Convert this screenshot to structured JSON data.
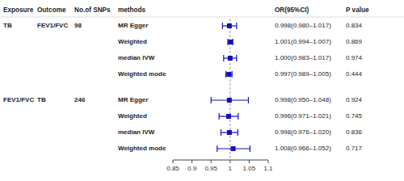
{
  "chart_data": {
    "type": "forest",
    "columns": [
      "Exposure",
      "Outcome",
      "No.of SNPs",
      "methods",
      "OR(95%CI)",
      "P value"
    ],
    "rows": [
      {
        "exposure": "TB",
        "outcome": "FEV1/FVC",
        "snps": 98,
        "method": "MR Egger",
        "value": 0.998,
        "ci_low": 0.98,
        "ci_high": 1.017,
        "value_label": "0.998(0.980–1.017)",
        "pval": 0.834
      },
      {
        "exposure": null,
        "outcome": null,
        "snps": null,
        "method": "Weighted",
        "value": 1.001,
        "ci_low": 0.994,
        "ci_high": 1.007,
        "value_label": "1.001(0.994–1.007)",
        "pval": 0.869
      },
      {
        "exposure": null,
        "outcome": null,
        "snps": null,
        "method": "median IVW",
        "value": 1.0,
        "ci_low": 0.983,
        "ci_high": 1.017,
        "value_label": "1.000(0.983–1.017)",
        "pval": 0.974
      },
      {
        "exposure": null,
        "outcome": null,
        "snps": null,
        "method": "Weighted mode",
        "value": 0.997,
        "ci_low": 0.989,
        "ci_high": 1.005,
        "value_label": "0.997(0.989–1.005)",
        "pval": 0.444
      },
      {
        "exposure": "FEV1/FVC",
        "outcome": "TB",
        "snps": 246,
        "method": "MR Egger",
        "value": 0.998,
        "ci_low": 0.95,
        "ci_high": 1.048,
        "value_label": "0.998(0.950–1.048)",
        "pval": 0.924
      },
      {
        "exposure": null,
        "outcome": null,
        "snps": null,
        "method": "Weighted",
        "value": 0.996,
        "ci_low": 0.971,
        "ci_high": 1.021,
        "value_label": "0.996(0.971–1.021)",
        "pval": 0.745
      },
      {
        "exposure": null,
        "outcome": null,
        "snps": null,
        "method": "median IVW",
        "value": 0.998,
        "ci_low": 0.976,
        "ci_high": 1.02,
        "value_label": "0.998(0.976–1.020)",
        "pval": 0.836
      },
      {
        "exposure": null,
        "outcome": null,
        "snps": null,
        "method": "Weighted mode",
        "value": 1.008,
        "ci_low": 0.966,
        "ci_high": 1.052,
        "value_label": "1.008(0.966–1.052)",
        "pval": 0.717
      }
    ],
    "xlim": [
      0.85,
      1.1
    ],
    "xticks": [
      0.85,
      0.9,
      0.95,
      1,
      1.05,
      1.1
    ],
    "reference_line": 1.0,
    "color": "#1111BB"
  }
}
